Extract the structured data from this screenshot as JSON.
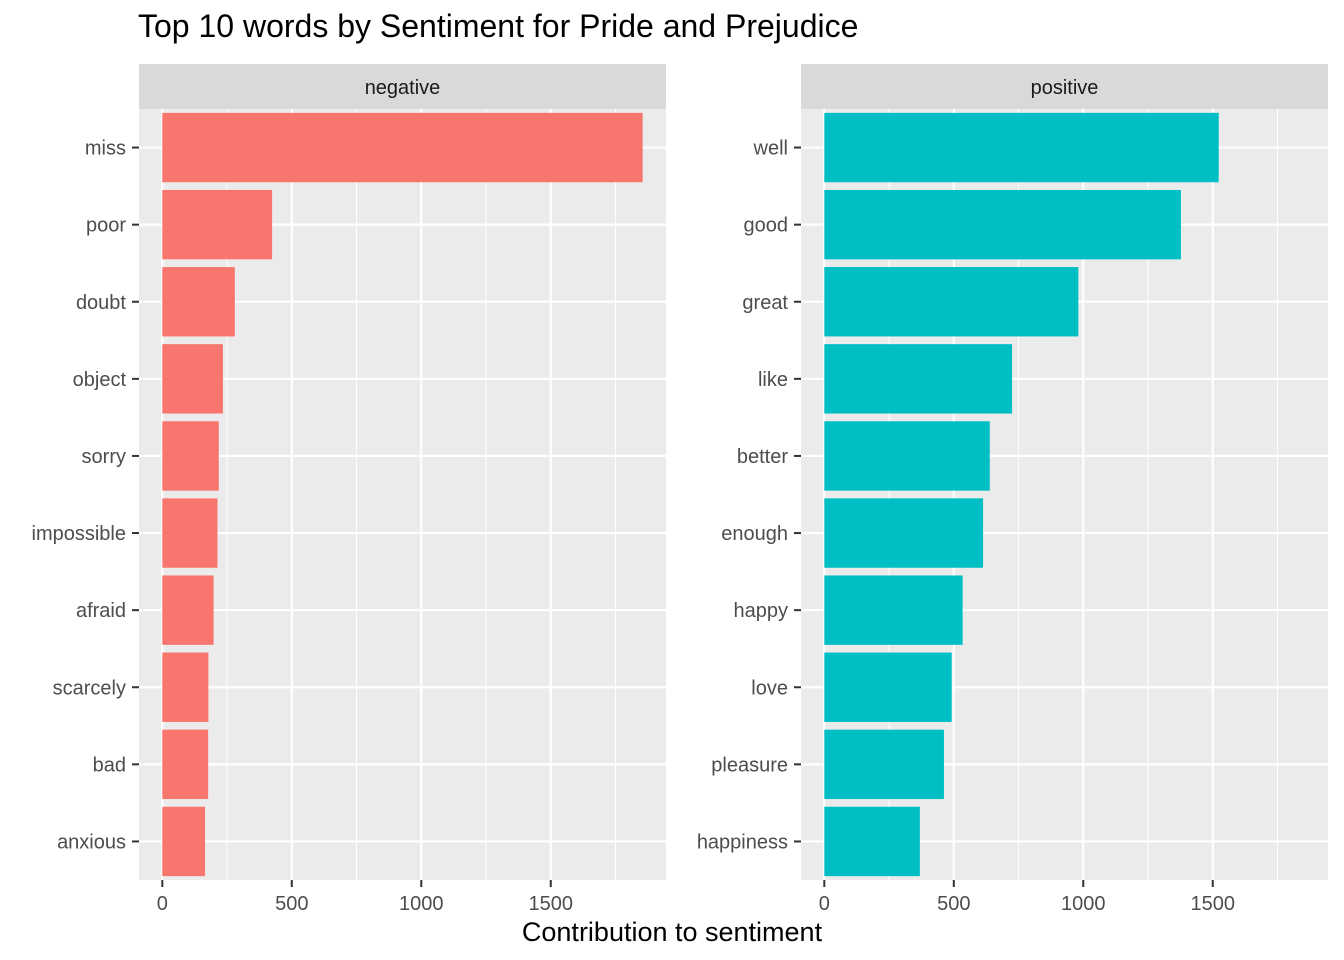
{
  "chart_data": {
    "type": "bar",
    "orientation": "horizontal",
    "title": "Top 10 words by Sentiment for Pride and Prejudice",
    "xlabel": "Contribution to sentiment",
    "ylabel": "",
    "xlim": [
      -90,
      1945
    ],
    "xticks": [
      0,
      500,
      1000,
      1500
    ],
    "grid": true,
    "legend": "none",
    "facets": [
      {
        "name": "negative",
        "color": "#F8766D",
        "categories": [
          "miss",
          "poor",
          "doubt",
          "object",
          "sorry",
          "impossible",
          "afraid",
          "scarcely",
          "bad",
          "anxious"
        ],
        "values": [
          1855,
          424,
          280,
          234,
          218,
          213,
          198,
          178,
          177,
          165
        ]
      },
      {
        "name": "positive",
        "color": "#00BFC4",
        "categories": [
          "well",
          "good",
          "great",
          "like",
          "better",
          "enough",
          "happy",
          "love",
          "pleasure",
          "happiness"
        ],
        "values": [
          1523,
          1377,
          981,
          725,
          639,
          613,
          534,
          492,
          462,
          369
        ]
      }
    ]
  }
}
